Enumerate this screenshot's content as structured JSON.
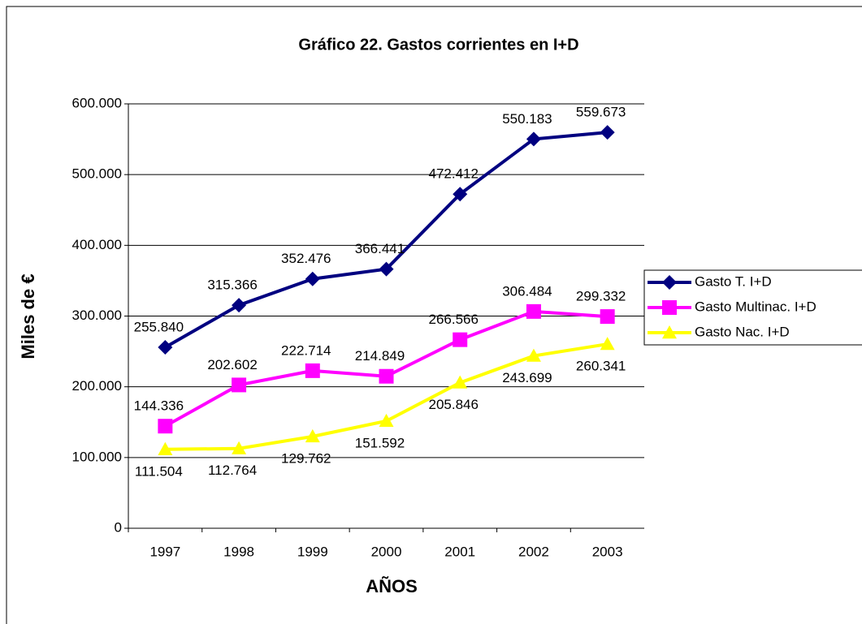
{
  "chart_data": {
    "type": "line",
    "title": "Gráfico 22. Gastos corrientes en I+D",
    "y_label": "Miles de €",
    "x_label": "AÑOS",
    "categories": [
      "1997",
      "1998",
      "1999",
      "2000",
      "2001",
      "2002",
      "2003"
    ],
    "ylim": [
      0,
      600000
    ],
    "yticks": [
      0,
      {
        "value": 100000,
        "label": "100.000"
      },
      {
        "value": 200000,
        "label": "200.000"
      },
      {
        "value": 300000,
        "label": "300.000"
      },
      {
        "value": 400000,
        "label": "400.000"
      },
      {
        "value": 500000,
        "label": "500.000"
      },
      {
        "value": 600000,
        "label": "600.000"
      }
    ],
    "grid": true,
    "legend": "right",
    "series": [
      {
        "name": "Gasto T. I+D",
        "color": "#000080",
        "marker": "diamond",
        "values": [
          255840,
          315366,
          352476,
          366441,
          472412,
          550183,
          559673
        ],
        "value_labels": [
          "255.840",
          "315.366",
          "352.476",
          "366.441",
          "472.412",
          "550.183",
          "559.673"
        ]
      },
      {
        "name": "Gasto Multinac. I+D",
        "color": "#ff00ff",
        "marker": "square",
        "values": [
          144336,
          202602,
          222714,
          214849,
          266566,
          306484,
          299332
        ],
        "value_labels": [
          "144.336",
          "202.602",
          "222.714",
          "214.849",
          "266.566",
          "306.484",
          "299.332"
        ]
      },
      {
        "name": "Gasto Nac. I+D",
        "color": "#ffff00",
        "marker": "triangle",
        "values": [
          111504,
          112764,
          129762,
          151592,
          205846,
          243699,
          260341
        ],
        "value_labels": [
          "111.504",
          "112.764",
          "129.762",
          "151.592",
          "205.846",
          "243.699",
          "260.341"
        ]
      }
    ]
  }
}
